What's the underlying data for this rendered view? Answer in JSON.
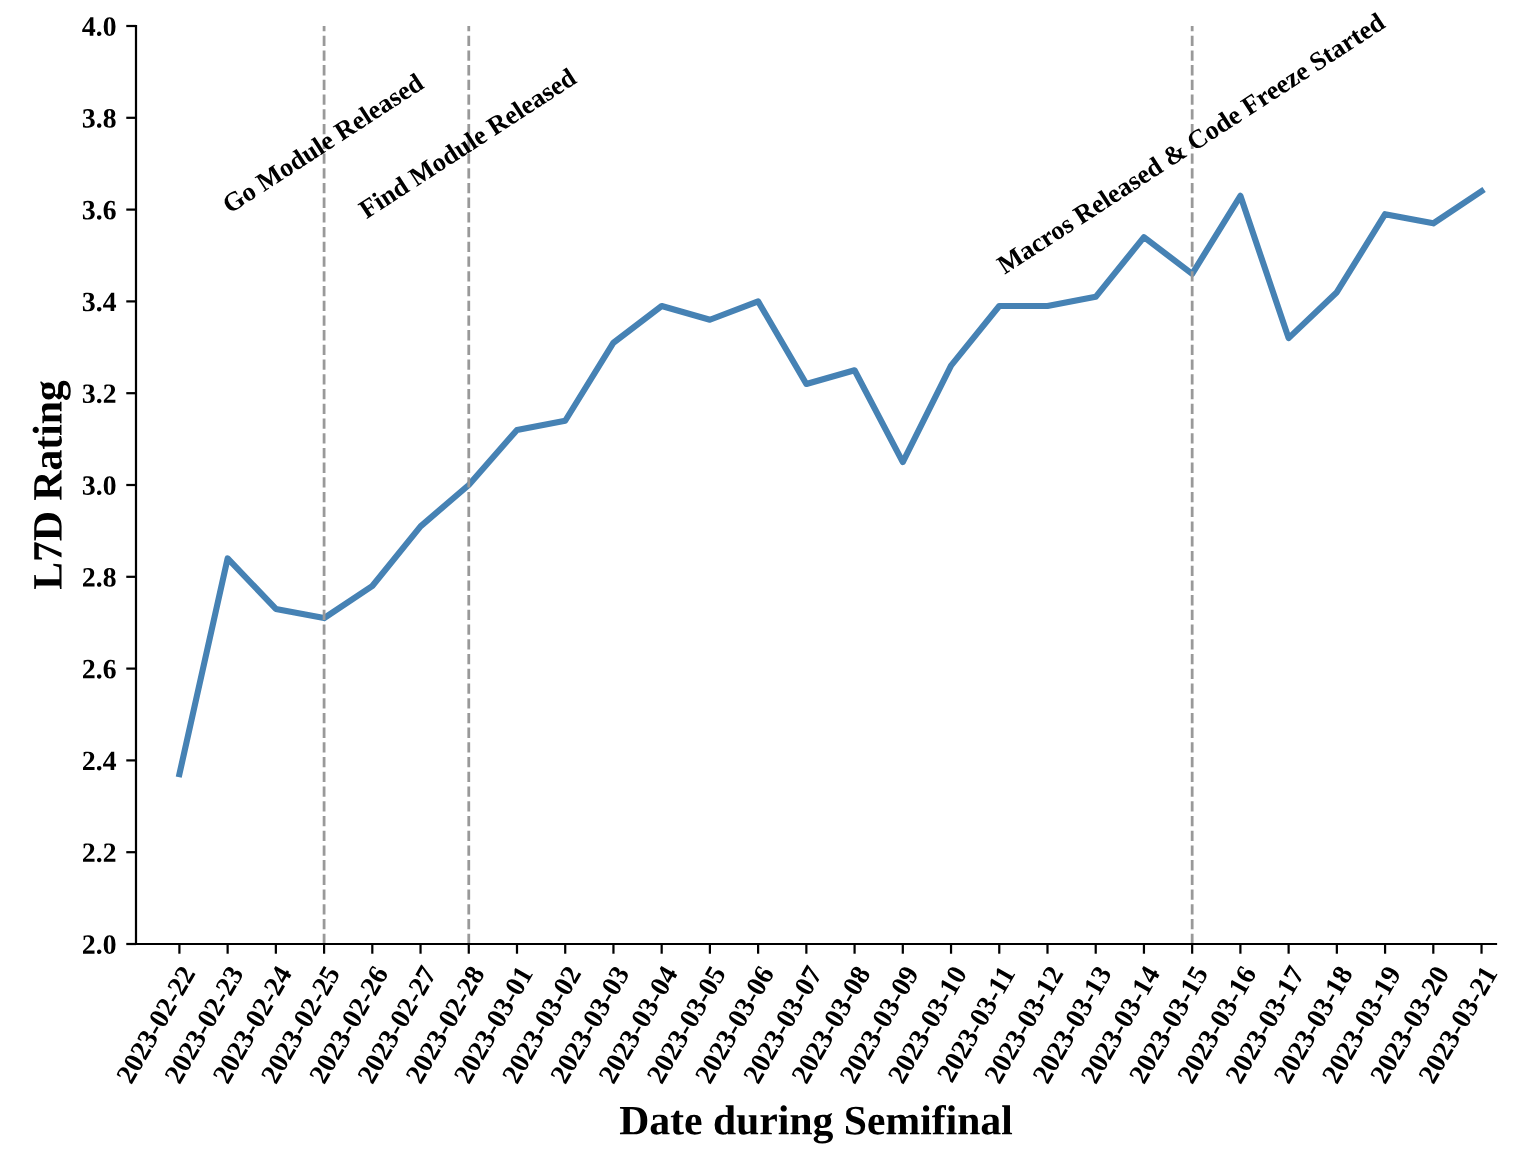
{
  "chart_data": {
    "type": "line",
    "xlabel": "Date during Semifinal",
    "ylabel": "L7D Rating",
    "categories": [
      "2023-02-22",
      "2023-02-23",
      "2023-02-24",
      "2023-02-25",
      "2023-02-26",
      "2023-02-27",
      "2023-02-28",
      "2023-03-01",
      "2023-03-02",
      "2023-03-03",
      "2023-03-04",
      "2023-03-05",
      "2023-03-06",
      "2023-03-07",
      "2023-03-08",
      "2023-03-09",
      "2023-03-10",
      "2023-03-11",
      "2023-03-12",
      "2023-03-13",
      "2023-03-14",
      "2023-03-15",
      "2023-03-16",
      "2023-03-17",
      "2023-03-18",
      "2023-03-19",
      "2023-03-20",
      "2023-03-21"
    ],
    "series": [
      {
        "color": "#4682b4",
        "values": [
          2.37,
          2.84,
          2.73,
          2.71,
          2.78,
          2.91,
          3.0,
          3.12,
          3.14,
          3.31,
          3.39,
          3.36,
          3.4,
          3.22,
          3.25,
          3.05,
          3.26,
          3.39,
          3.39,
          3.41,
          3.54,
          3.46,
          3.63,
          3.32,
          3.42,
          3.59,
          3.57,
          3.64
        ]
      }
    ],
    "ylim": [
      2.0,
      4.0
    ],
    "yticks": [
      {
        "value": 2.0,
        "label": "2.0"
      },
      {
        "value": 2.2,
        "label": "2.2"
      },
      {
        "value": 2.4,
        "label": "2.4"
      },
      {
        "value": 2.6,
        "label": "2.6"
      },
      {
        "value": 2.8,
        "label": "2.8"
      },
      {
        "value": 3.0,
        "label": "3.0"
      },
      {
        "value": 3.2,
        "label": "3.2"
      },
      {
        "value": 3.4,
        "label": "3.4"
      },
      {
        "value": 3.6,
        "label": "3.6"
      },
      {
        "value": 3.8,
        "label": "3.8"
      },
      {
        "value": 4.0,
        "label": "4.0"
      }
    ],
    "ref_lines": [
      {
        "axis": "x",
        "value": "2023-02-25",
        "label": "Go Module Released",
        "color": "#999999",
        "line_style": "dashed"
      },
      {
        "axis": "x",
        "value": "2023-02-28",
        "label": "Find Module Released",
        "color": "#999999",
        "line_style": "dashed"
      },
      {
        "axis": "x",
        "value": "2023-03-15",
        "label": "Macros Released & Code Freeze Started",
        "color": "#999999",
        "line_style": "dashed"
      }
    ],
    "grid": false,
    "legend": false,
    "marker": "none",
    "line_style": "solid"
  }
}
